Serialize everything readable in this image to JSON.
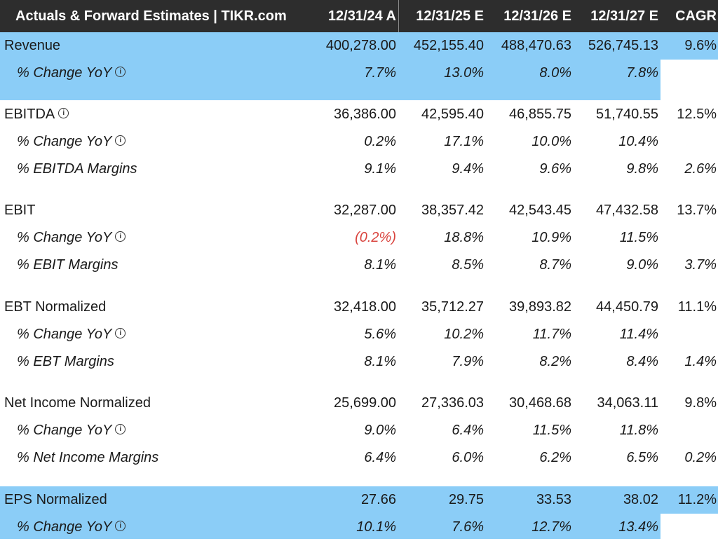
{
  "header": {
    "title": "Actuals & Forward Estimates | TIKR.com",
    "columns": [
      "12/31/24 A",
      "12/31/25 E",
      "12/31/26 E",
      "12/31/27 E",
      "CAGR"
    ]
  },
  "colors": {
    "header_bg": "#2d2d2d",
    "highlight_bg": "#8bcdf7",
    "negative_text": "#d9443e"
  },
  "icons": {
    "info": "info-circle-icon",
    "info_glyph": "i"
  },
  "rows": [
    {
      "label": "Revenue",
      "values": [
        "400,278.00",
        "452,155.40",
        "488,470.63",
        "526,745.13",
        "9.6%"
      ]
    },
    {
      "label": "% Change YoY",
      "values": [
        "7.7%",
        "13.0%",
        "8.0%",
        "7.8%",
        ""
      ]
    },
    {
      "label": "EBITDA",
      "values": [
        "36,386.00",
        "42,595.40",
        "46,855.75",
        "51,740.55",
        "12.5%"
      ]
    },
    {
      "label": "% Change YoY",
      "values": [
        "0.2%",
        "17.1%",
        "10.0%",
        "10.4%",
        ""
      ]
    },
    {
      "label": "% EBITDA Margins",
      "values": [
        "9.1%",
        "9.4%",
        "9.6%",
        "9.8%",
        "2.6%"
      ]
    },
    {
      "label": "EBIT",
      "values": [
        "32,287.00",
        "38,357.42",
        "42,543.45",
        "47,432.58",
        "13.7%"
      ]
    },
    {
      "label": "% Change YoY",
      "values": [
        "(0.2%)",
        "18.8%",
        "10.9%",
        "11.5%",
        ""
      ]
    },
    {
      "label": "% EBIT Margins",
      "values": [
        "8.1%",
        "8.5%",
        "8.7%",
        "9.0%",
        "3.7%"
      ]
    },
    {
      "label": "EBT Normalized",
      "values": [
        "32,418.00",
        "35,712.27",
        "39,893.82",
        "44,450.79",
        "11.1%"
      ]
    },
    {
      "label": "% Change YoY",
      "values": [
        "5.6%",
        "10.2%",
        "11.7%",
        "11.4%",
        ""
      ]
    },
    {
      "label": "% EBT Margins",
      "values": [
        "8.1%",
        "7.9%",
        "8.2%",
        "8.4%",
        "1.4%"
      ]
    },
    {
      "label": "Net Income Normalized",
      "values": [
        "25,699.00",
        "27,336.03",
        "30,468.68",
        "34,063.11",
        "9.8%"
      ]
    },
    {
      "label": "% Change YoY",
      "values": [
        "9.0%",
        "6.4%",
        "11.5%",
        "11.8%",
        ""
      ]
    },
    {
      "label": "% Net Income Margins",
      "values": [
        "6.4%",
        "6.0%",
        "6.2%",
        "6.5%",
        "0.2%"
      ]
    },
    {
      "label": "EPS Normalized",
      "values": [
        "27.66",
        "29.75",
        "33.53",
        "38.02",
        "11.2%"
      ]
    },
    {
      "label": "% Change YoY",
      "values": [
        "10.1%",
        "7.6%",
        "12.7%",
        "13.4%",
        ""
      ]
    }
  ]
}
